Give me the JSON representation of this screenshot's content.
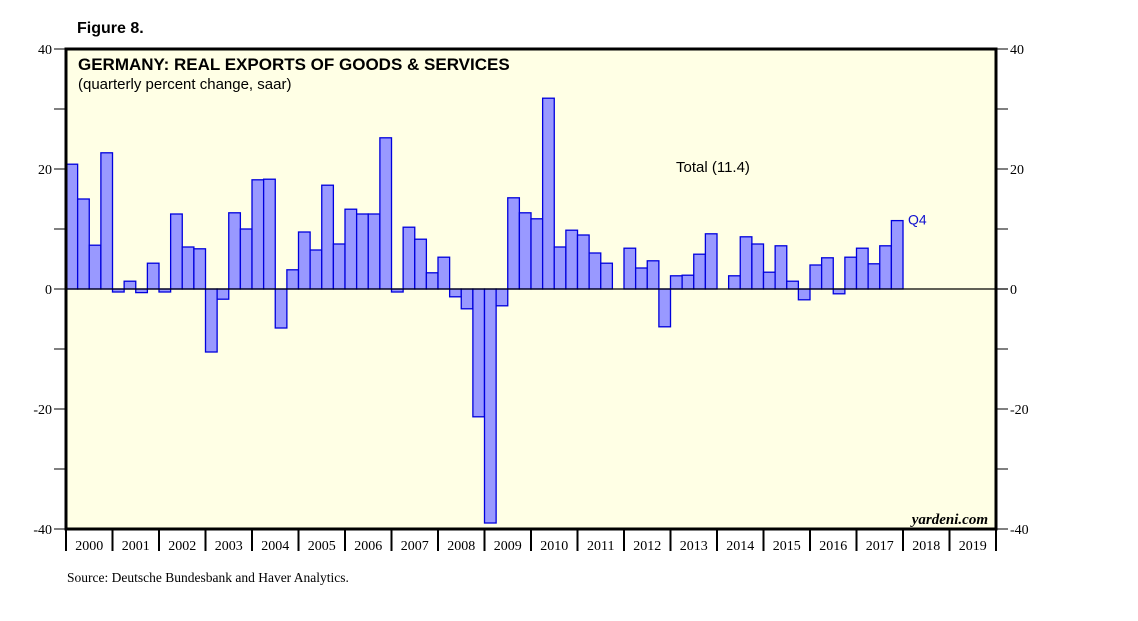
{
  "figure_label": "Figure 8.",
  "source": "Source: Deutsche Bundesbank and Haver Analytics.",
  "colors": {
    "plot_background": "#ffffe5",
    "bar_fill": "#9999ff",
    "bar_stroke": "#0000dd",
    "q4_label": "#1010d0"
  },
  "chart_data": {
    "type": "bar",
    "title": "GERMANY: REAL EXPORTS OF GOODS & SERVICES",
    "subtitle": "(quarterly percent change, saar)",
    "xlabel": "",
    "ylabel": "",
    "ylim": [
      -40,
      40
    ],
    "y_ticks_labeled": [
      40,
      20,
      0,
      -20,
      -40
    ],
    "y_ticks_minor": [
      30,
      10,
      -10,
      -30
    ],
    "y_axes": [
      "left",
      "right"
    ],
    "grid": false,
    "x_years": [
      "2000",
      "2001",
      "2002",
      "2003",
      "2004",
      "2005",
      "2006",
      "2007",
      "2008",
      "2009",
      "2010",
      "2011",
      "2012",
      "2013",
      "2014",
      "2015",
      "2016",
      "2017",
      "2018",
      "2019"
    ],
    "series": [
      {
        "name": "Total",
        "frequency": "quarterly",
        "start": "2000 Q1",
        "values": [
          20.8,
          15.0,
          7.3,
          22.7,
          -0.5,
          1.3,
          -0.6,
          4.3,
          -0.5,
          12.5,
          7.0,
          6.7,
          -10.5,
          -1.7,
          12.7,
          10.0,
          18.2,
          18.3,
          -6.5,
          3.2,
          9.5,
          6.5,
          17.3,
          7.5,
          13.3,
          12.5,
          12.5,
          25.2,
          -0.5,
          10.3,
          8.3,
          2.7,
          5.3,
          -1.3,
          -3.3,
          -21.3,
          -39.0,
          -2.8,
          15.2,
          12.7,
          11.7,
          31.8,
          7.0,
          9.8,
          9.0,
          6.0,
          4.3,
          0.0,
          6.8,
          3.5,
          4.7,
          -6.3,
          2.2,
          2.3,
          5.8,
          9.2,
          0.0,
          2.2,
          8.7,
          7.5,
          2.8,
          7.2,
          1.3,
          -1.8,
          4.0,
          5.2,
          -0.8,
          5.3,
          6.8,
          4.2,
          7.2,
          11.4
        ]
      }
    ],
    "annotations": {
      "total_label": "Total (11.4)",
      "last_point_label": "Q4",
      "watermark": "yardeni.com"
    }
  }
}
